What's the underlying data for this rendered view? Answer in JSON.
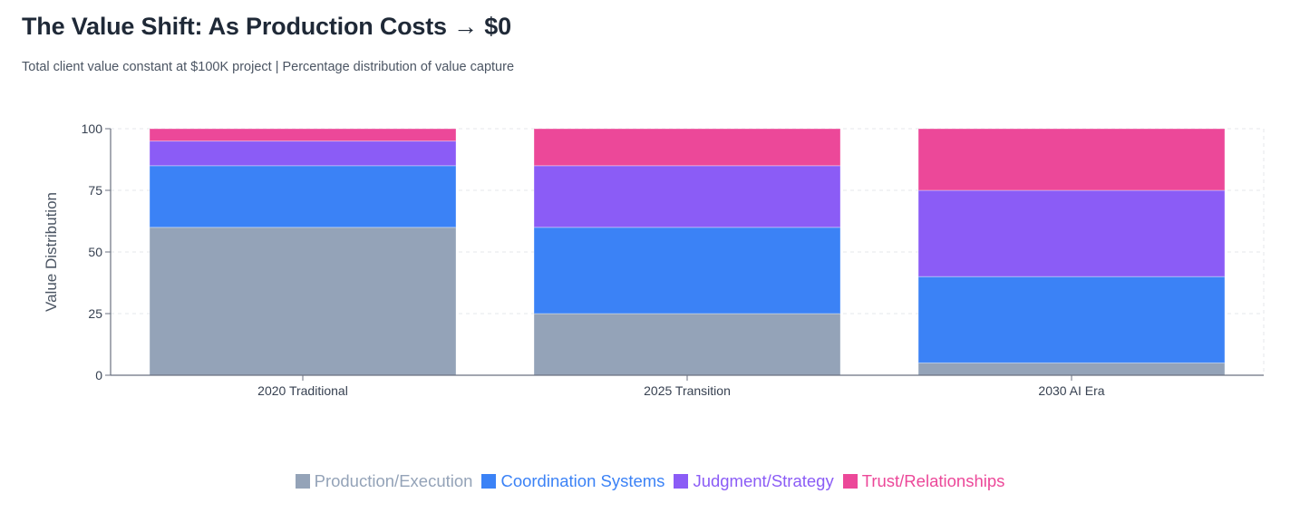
{
  "header": {
    "title": "The Value Shift: As Production Costs → $0",
    "subtitle": "Total client value constant at $100K project | Percentage distribution of value capture"
  },
  "chart_data": {
    "type": "bar",
    "stacked": true,
    "title": "The Value Shift: As Production Costs → $0",
    "subtitle": "Total client value constant at $100K project | Percentage distribution of value capture",
    "xlabel": "",
    "ylabel": "Value Distribution",
    "ylim": [
      0,
      100
    ],
    "yticks": [
      0,
      25,
      50,
      75,
      100
    ],
    "grid": true,
    "legend_position": "bottom-center",
    "categories": [
      "2020 Traditional",
      "2025 Transition",
      "2030 AI Era"
    ],
    "series": [
      {
        "name": "Production/Execution",
        "color": "#94a3b8",
        "values": [
          60,
          25,
          5
        ]
      },
      {
        "name": "Coordination Systems",
        "color": "#3b82f6",
        "values": [
          25,
          35,
          35
        ]
      },
      {
        "name": "Judgment/Strategy",
        "color": "#8b5cf6",
        "values": [
          10,
          25,
          35
        ]
      },
      {
        "name": "Trust/Relationships",
        "color": "#ec4899",
        "values": [
          5,
          15,
          25
        ]
      }
    ]
  }
}
